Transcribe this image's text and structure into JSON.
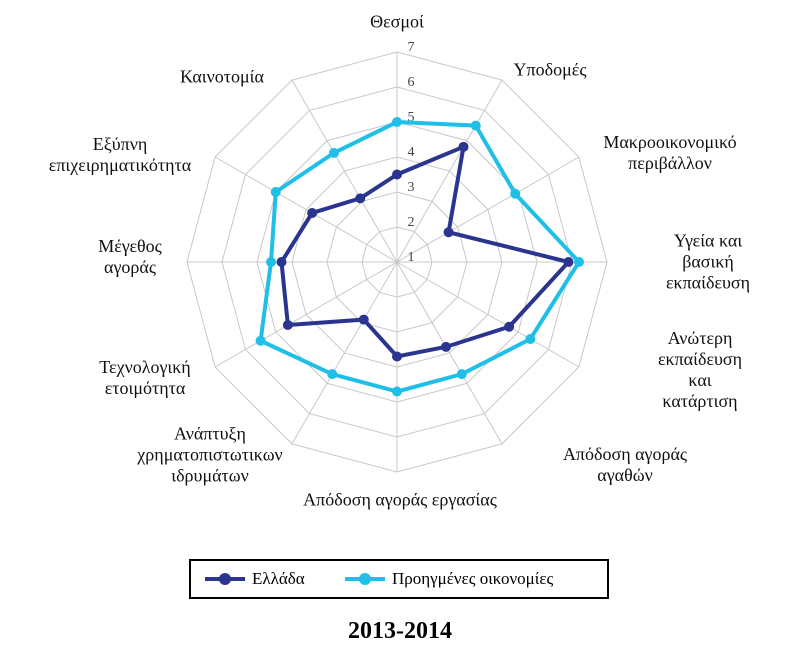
{
  "chart_data": {
    "type": "radar",
    "title": "2013-2014",
    "categories": [
      "Θεσμοί",
      "Υποδομές",
      "Μακροοικονομικό\nπεριβάλλον",
      "Υγεία και βασική\nεκπαίδευση",
      "Ανώτερη εκπαίδευση\nκαι κατάρτιση",
      "Απόδοση αγοράς αγαθών",
      "Απόδοση αγοράς εργασίας",
      "Ανάπτυξη\nχρηματοπιστωτικων\nιδρυμάτων",
      "Τεχνολογική\nετοιμότητα",
      "Μέγεθος\nαγοράς",
      "Εξύπνη\nεπιχειρηματικότητα",
      "Καινοτομία"
    ],
    "series": [
      {
        "name": "Ελλάδα",
        "color": "#2b3590",
        "values": [
          3.5,
          4.8,
          2.7,
          5.9,
          4.7,
          3.8,
          3.7,
          2.9,
          4.6,
          4.3,
          3.8,
          3.1
        ]
      },
      {
        "name": "Προηγμένες οικονομίες",
        "color": "#1fbfe8",
        "values": [
          5.0,
          5.5,
          4.9,
          6.2,
          5.4,
          4.7,
          4.7,
          4.7,
          5.5,
          4.6,
          5.0,
          4.6
        ]
      }
    ],
    "ylim": [
      1,
      7
    ],
    "yticks": [
      1,
      2,
      3,
      4,
      5,
      6,
      7
    ],
    "grid": true
  }
}
